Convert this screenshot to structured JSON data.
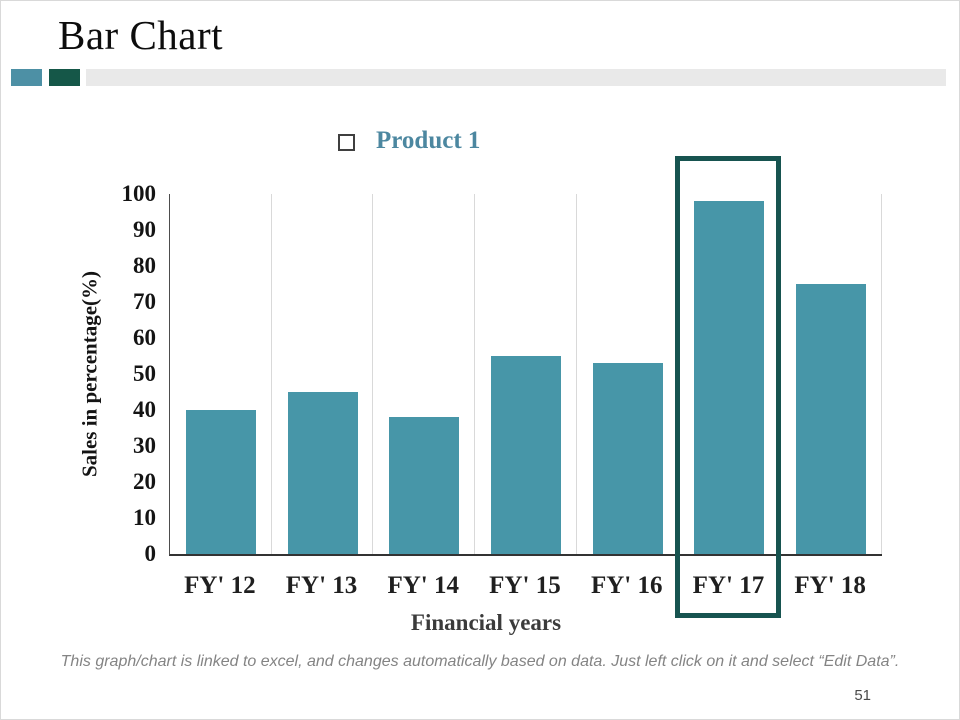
{
  "slide": {
    "title": "Bar Chart",
    "page_number": "51",
    "footer": "This graph/chart is linked to excel, and changes automatically based on data. Just left click on it and select “Edit Data”."
  },
  "legend": {
    "label": "Product 1",
    "bullet": "hollow-square-icon"
  },
  "chart_data": {
    "type": "bar",
    "series_name": "Product 1",
    "categories": [
      "FY' 12",
      "FY' 13",
      "FY' 14",
      "FY' 15",
      "FY' 16",
      "FY' 17",
      "FY' 18"
    ],
    "values": [
      40,
      45,
      38,
      55,
      53,
      98,
      75
    ],
    "xlabel": "Financial years",
    "ylabel": "Sales in percentage(%)",
    "ylim": [
      0,
      100
    ],
    "yticks": [
      0,
      10,
      20,
      30,
      40,
      50,
      60,
      70,
      80,
      90,
      100
    ],
    "grid": "vertical-category-separators",
    "legend_position": "top-center",
    "highlighted_category": "FY' 17"
  },
  "colors": {
    "bar_fill": "#4796A8",
    "highlight": "#175450",
    "deco_teal": "#4D90A5",
    "deco_green": "#155748",
    "deco_gray": "#E9E9E9",
    "legend_text": "#4C87A0",
    "gridline": "#D9D9D9"
  }
}
